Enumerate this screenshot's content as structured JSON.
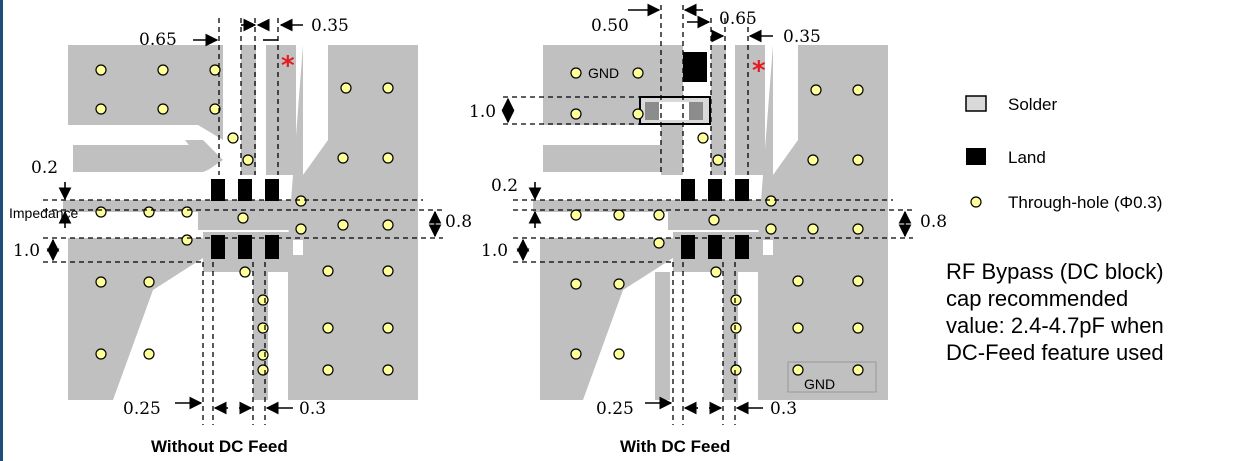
{
  "colors": {
    "copper": "#c0c0c0",
    "land": "#000000",
    "hole": "#ffff99",
    "star": "#e31b23"
  },
  "left_panel": {
    "caption": "Without DC Feed",
    "dim_065": "0.65",
    "dim_035": "0.35",
    "dim_02": "0.2",
    "dim_10": "1.0",
    "dim_08": "0.8",
    "dim_025": "0.25",
    "dim_03": "0.3",
    "impedance_label": "Impedance",
    "star": "*"
  },
  "right_panel": {
    "caption": "With DC Feed",
    "dim_050": "0.50",
    "dim_065": "0.65",
    "dim_035": "0.35",
    "dim_10_top": "1.0",
    "dim_02": "0.2",
    "dim_10": "1.0",
    "dim_08": "0.8",
    "dim_025": "0.25",
    "dim_03": "0.3",
    "gnd_top": "GND",
    "gnd_bottom": "GND",
    "star": "*"
  },
  "legend": {
    "solder": "Solder",
    "land": "Land",
    "through_hole": "Through-hole (Φ0.3)"
  },
  "note": {
    "line1": "RF Bypass (DC block)",
    "line2": "cap recommended",
    "line3": "value: 2.4-4.7pF when",
    "line4": "DC-Feed feature used"
  }
}
